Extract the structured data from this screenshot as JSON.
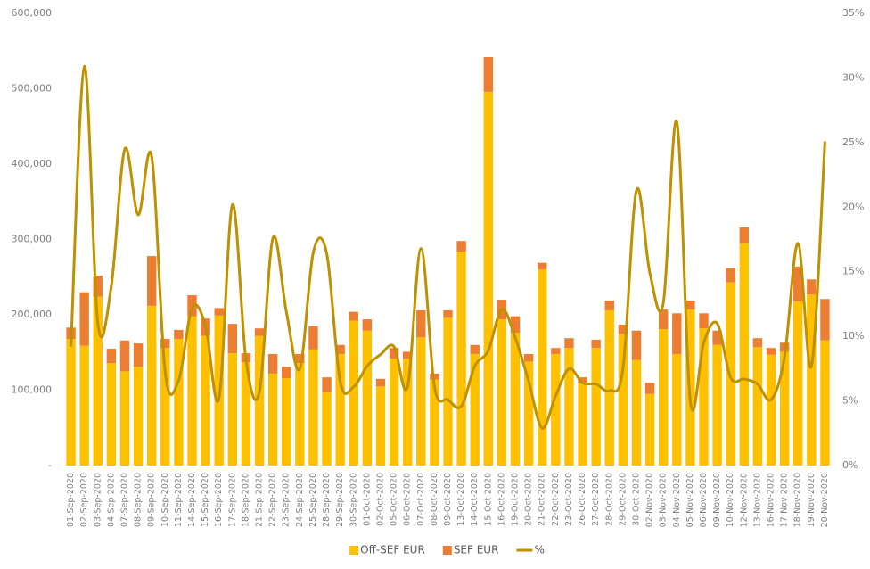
{
  "chart_data": {
    "type": "bar",
    "stacked": true,
    "legend": "bottom",
    "grid": false,
    "categories": [
      "01-Sep-2020",
      "02-Sep-2020",
      "03-Sep-2020",
      "04-Sep-2020",
      "07-Sep-2020",
      "08-Sep-2020",
      "09-Sep-2020",
      "10-Sep-2020",
      "11-Sep-2020",
      "14-Sep-2020",
      "15-Sep-2020",
      "16-Sep-2020",
      "17-Sep-2020",
      "18-Sep-2020",
      "21-Sep-2020",
      "22-Sep-2020",
      "23-Sep-2020",
      "24-Sep-2020",
      "25-Sep-2020",
      "28-Sep-2020",
      "29-Sep-2020",
      "30-Sep-2020",
      "01-Oct-2020",
      "02-Oct-2020",
      "05-Oct-2020",
      "06-Oct-2020",
      "07-Oct-2020",
      "08-Oct-2020",
      "09-Oct-2020",
      "13-Oct-2020",
      "14-Oct-2020",
      "15-Oct-2020",
      "16-Oct-2020",
      "19-Oct-2020",
      "20-Oct-2020",
      "21-Oct-2020",
      "22-Oct-2020",
      "23-Oct-2020",
      "26-Oct-2020",
      "27-Oct-2020",
      "28-Oct-2020",
      "29-Oct-2020",
      "30-Oct-2020",
      "02-Nov-2020",
      "03-Nov-2020",
      "04-Nov-2020",
      "05-Nov-2020",
      "06-Nov-2020",
      "09-Nov-2020",
      "10-Nov-2020",
      "12-Nov-2020",
      "13-Nov-2020",
      "16-Nov-2020",
      "17-Nov-2020",
      "18-Nov-2020",
      "19-Nov-2020",
      "20-Nov-2020"
    ],
    "series": [
      {
        "name": "Off-SEF EUR",
        "color": "#ffc000",
        "values": [
          168000,
          159000,
          224000,
          136000,
          125000,
          131000,
          212000,
          156000,
          168000,
          198000,
          172000,
          199000,
          149000,
          137000,
          172000,
          122000,
          116000,
          136000,
          154000,
          97000,
          148000,
          192000,
          179000,
          105000,
          142000,
          142000,
          170000,
          114000,
          196000,
          284000,
          148000,
          496000,
          194000,
          176000,
          138000,
          260000,
          148000,
          156000,
          109000,
          156000,
          206000,
          175000,
          140000,
          95000,
          181000,
          148000,
          207000,
          182000,
          160000,
          243000,
          295000,
          157000,
          147000,
          151000,
          218000,
          227000,
          166000
        ]
      },
      {
        "name": "SEF EUR",
        "color": "#ed7d31",
        "values": [
          15000,
          71000,
          28000,
          19000,
          41000,
          31000,
          66000,
          12000,
          12000,
          28000,
          23000,
          10000,
          39000,
          12000,
          10000,
          26000,
          15000,
          12000,
          31000,
          20000,
          12000,
          12000,
          15000,
          10000,
          14000,
          9000,
          36000,
          8000,
          10000,
          14000,
          12000,
          46000,
          26000,
          22000,
          10000,
          9000,
          8000,
          13000,
          8000,
          11000,
          13000,
          12000,
          39000,
          15000,
          26000,
          54000,
          12000,
          20000,
          19000,
          19000,
          21000,
          12000,
          9000,
          12000,
          46000,
          20000,
          55000
        ]
      },
      {
        "name": "%",
        "color": "#bf9000",
        "type": "line",
        "axis": "y2",
        "values": [
          9.2,
          30.9,
          11.0,
          13.9,
          24.5,
          19.4,
          23.9,
          7.2,
          6.6,
          12.2,
          10.8,
          5.2,
          20.2,
          8.2,
          5.7,
          17.6,
          11.9,
          7.5,
          16.5,
          16.4,
          6.5,
          6.1,
          7.7,
          8.6,
          9.2,
          6.1,
          16.8,
          6.1,
          5.1,
          4.6,
          7.7,
          8.9,
          12.1,
          9.9,
          6.5,
          2.9,
          5.4,
          7.5,
          6.4,
          6.3,
          5.8,
          7.5,
          21.3,
          14.9,
          12.6,
          26.6,
          5.0,
          9.5,
          11.0,
          6.8,
          6.7,
          6.3,
          5.1,
          8.4,
          17.2,
          7.7,
          25.1
        ]
      }
    ],
    "ylim": [
      0,
      600000
    ],
    "yticks": [
      {
        "value": 0,
        "label": "-"
      },
      {
        "value": 100000,
        "label": "100,000"
      },
      {
        "value": 200000,
        "label": "200,000"
      },
      {
        "value": 300000,
        "label": "300,000"
      },
      {
        "value": 400000,
        "label": "400,000"
      },
      {
        "value": 500000,
        "label": "500,000"
      },
      {
        "value": 600000,
        "label": "600,000"
      }
    ],
    "y2lim": [
      0,
      35
    ],
    "y2ticks": [
      {
        "value": 0,
        "label": "0%"
      },
      {
        "value": 5,
        "label": "5%"
      },
      {
        "value": 10,
        "label": "10%"
      },
      {
        "value": 15,
        "label": "15%"
      },
      {
        "value": 20,
        "label": "20%"
      },
      {
        "value": 25,
        "label": "25%"
      },
      {
        "value": 30,
        "label": "30%"
      },
      {
        "value": 35,
        "label": "35%"
      }
    ]
  }
}
